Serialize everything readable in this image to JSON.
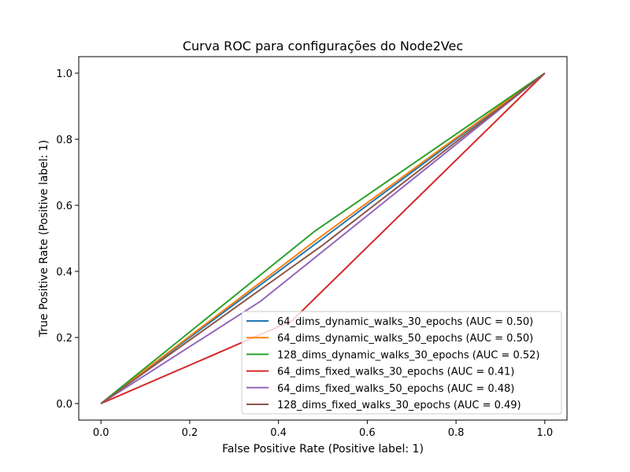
{
  "chart_data": {
    "type": "line",
    "title": "Curva ROC para configurações do Node2Vec",
    "xlabel": "False Positive Rate (Positive label: 1)",
    "ylabel": "True Positive Rate (Positive label: 1)",
    "xlim": [
      -0.05,
      1.05
    ],
    "ylim": [
      -0.05,
      1.05
    ],
    "xticks": [
      "0.0",
      "0.2",
      "0.4",
      "0.6",
      "0.8",
      "1.0"
    ],
    "yticks": [
      "0.0",
      "0.2",
      "0.4",
      "0.6",
      "0.8",
      "1.0"
    ],
    "grid": false,
    "legend_position": "lower-right",
    "series": [
      {
        "name": "64_dims_dynamic_walks_30_epochs (AUC = 0.50)",
        "color": "#1f77b4",
        "x": [
          0.0,
          0.5,
          1.0
        ],
        "y": [
          0.0,
          0.5,
          1.0
        ]
      },
      {
        "name": "64_dims_dynamic_walks_50_epochs (AUC = 0.50)",
        "color": "#ff7f0e",
        "x": [
          0.0,
          0.49,
          1.0
        ],
        "y": [
          0.0,
          0.5,
          1.0
        ]
      },
      {
        "name": "128_dims_dynamic_walks_30_epochs (AUC = 0.52)",
        "color": "#2ca02c",
        "x": [
          0.0,
          0.48,
          1.0
        ],
        "y": [
          0.0,
          0.52,
          1.0
        ]
      },
      {
        "name": "64_dims_fixed_walks_30_epochs (AUC = 0.41)",
        "color": "#d62728",
        "x": [
          0.0,
          0.43,
          1.0
        ],
        "y": [
          0.0,
          0.25,
          1.0
        ]
      },
      {
        "name": "64_dims_fixed_walks_50_epochs (AUC = 0.48)",
        "color": "#9467bd",
        "x": [
          0.0,
          0.36,
          1.0
        ],
        "y": [
          0.0,
          0.31,
          1.0
        ]
      },
      {
        "name": "128_dims_fixed_walks_30_epochs (AUC = 0.49)",
        "color": "#8c564b",
        "x": [
          0.0,
          0.5,
          1.0
        ],
        "y": [
          0.0,
          0.48,
          1.0
        ]
      }
    ]
  }
}
